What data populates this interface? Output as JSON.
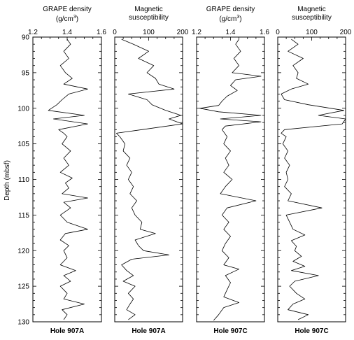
{
  "chart_data": {
    "type": "line",
    "y_axis": {
      "label": "Depth (mbsf)",
      "range": [
        90,
        130
      ],
      "reversed": true,
      "ticks": [
        "90",
        "95",
        "100",
        "105",
        "110",
        "115",
        "120",
        "125",
        "130"
      ]
    },
    "panels": [
      {
        "title": [
          "GRAPE density",
          "(g/cm",
          "3",
          ")"
        ],
        "x_range": [
          1.2,
          1.6
        ],
        "x_ticks": [
          "1.2",
          "1.4",
          "1.6"
        ],
        "hole": "Hole 907A",
        "series": {
          "depth": [
            90.3,
            91,
            92,
            93,
            94,
            95,
            95.8,
            96.6,
            97.3,
            98,
            98.8,
            99.5,
            100.3,
            101,
            101.5,
            102.2,
            103,
            103.5,
            104,
            105,
            106,
            107,
            108,
            109,
            109.8,
            110.5,
            111.2,
            112,
            112.6,
            113.2,
            114,
            115,
            116,
            117,
            117.6,
            118.5,
            119.3,
            120,
            121,
            122,
            122.8,
            123.5,
            124.3,
            125,
            126,
            126.8,
            127.5,
            128.3,
            129,
            129.7
          ],
          "density": [
            1.4,
            1.42,
            1.38,
            1.41,
            1.36,
            1.39,
            1.43,
            1.38,
            1.52,
            1.41,
            1.37,
            1.34,
            1.29,
            1.5,
            1.32,
            1.52,
            1.35,
            1.38,
            1.4,
            1.37,
            1.42,
            1.38,
            1.41,
            1.36,
            1.43,
            1.39,
            1.41,
            1.37,
            1.52,
            1.38,
            1.42,
            1.36,
            1.4,
            1.52,
            1.39,
            1.36,
            1.41,
            1.38,
            1.4,
            1.36,
            1.45,
            1.38,
            1.42,
            1.36,
            1.4,
            1.38,
            1.5,
            1.37,
            1.4,
            1.38
          ]
        }
      },
      {
        "title": [
          "Magnetic",
          "susceptibility"
        ],
        "x_range": [
          0,
          200
        ],
        "x_ticks": [
          "0",
          "100",
          "200"
        ],
        "hole": "Hole 907A",
        "series": {
          "depth": [
            90.3,
            91,
            92,
            93,
            94,
            95,
            95.8,
            96.6,
            97.3,
            98,
            98.8,
            99.5,
            100.3,
            101,
            101.5,
            102.2,
            103,
            103.5,
            104,
            105,
            106,
            107,
            108,
            109,
            110,
            111,
            112,
            113,
            114,
            115,
            116,
            117,
            117.6,
            118.5,
            119.3,
            120,
            120.6,
            121.2,
            122,
            122.8,
            123.5,
            124.3,
            125,
            126,
            126.8,
            127.5,
            128.3,
            129,
            129.7
          ],
          "susceptibility": [
            20,
            55,
            100,
            70,
            115,
            95,
            120,
            130,
            175,
            40,
            95,
            110,
            150,
            195,
            160,
            200,
            80,
            5,
            15,
            30,
            25,
            45,
            35,
            50,
            40,
            55,
            45,
            65,
            50,
            60,
            80,
            75,
            120,
            60,
            70,
            85,
            160,
            50,
            20,
            35,
            55,
            25,
            60,
            40,
            55,
            45,
            35,
            60,
            40
          ]
        }
      },
      {
        "title": [
          "GRAPE density",
          "(g/cm",
          "3",
          ")"
        ],
        "x_range": [
          1.2,
          1.6
        ],
        "x_ticks": [
          "1.2",
          "1.4",
          "1.6"
        ],
        "hole": "Hole 907C",
        "series": {
          "depth": [
            90.3,
            91,
            92,
            93,
            94,
            95,
            95.5,
            96,
            96.8,
            97.5,
            98.3,
            99,
            99.6,
            100,
            100.5,
            101,
            101.5,
            101.9,
            102.5,
            103,
            104,
            105,
            106,
            107,
            108,
            109,
            110,
            111,
            112,
            113,
            114,
            115,
            116,
            117,
            118,
            119,
            120,
            121,
            122,
            122.6,
            123.5,
            124.5,
            125.5,
            126.5,
            127.3,
            128,
            129,
            129.8
          ],
          "density": [
            1.45,
            1.43,
            1.46,
            1.42,
            1.45,
            1.41,
            1.58,
            1.43,
            1.4,
            1.44,
            1.38,
            1.35,
            1.33,
            1.22,
            1.33,
            1.58,
            1.34,
            1.58,
            1.37,
            1.35,
            1.38,
            1.36,
            1.4,
            1.37,
            1.39,
            1.36,
            1.41,
            1.37,
            1.34,
            1.55,
            1.38,
            1.35,
            1.39,
            1.36,
            1.4,
            1.37,
            1.35,
            1.39,
            1.36,
            1.45,
            1.37,
            1.4,
            1.38,
            1.36,
            1.45,
            1.36,
            1.33,
            1.3
          ]
        }
      },
      {
        "title": [
          "Magnetic",
          "susceptibility"
        ],
        "x_range": [
          0,
          200
        ],
        "x_ticks": [
          "0",
          "100",
          "200"
        ],
        "hole": "Hole 907C",
        "series": {
          "depth": [
            90.3,
            91,
            92,
            93,
            94,
            95,
            95.8,
            96.6,
            97.3,
            98,
            98.8,
            99.5,
            100.3,
            101,
            101.5,
            102.2,
            103,
            103.5,
            104,
            105,
            106,
            107,
            108,
            109,
            110,
            111,
            112,
            113,
            114,
            115,
            116,
            117,
            117.8,
            118.6,
            119.4,
            120,
            120.8,
            121.5,
            122.2,
            122.8,
            123.5,
            124.3,
            125,
            126,
            126.8,
            127.5,
            128.3,
            129,
            129.7
          ],
          "susceptibility": [
            40,
            60,
            30,
            75,
            45,
            60,
            55,
            90,
            40,
            10,
            20,
            90,
            195,
            120,
            200,
            190,
            20,
            10,
            25,
            15,
            30,
            20,
            35,
            25,
            30,
            20,
            40,
            30,
            130,
            25,
            35,
            45,
            80,
            40,
            55,
            50,
            70,
            45,
            80,
            40,
            120,
            50,
            35,
            55,
            80,
            45,
            30,
            90,
            60
          ]
        }
      }
    ]
  },
  "style": {
    "line_color": "#000000",
    "background": "#ffffff"
  }
}
